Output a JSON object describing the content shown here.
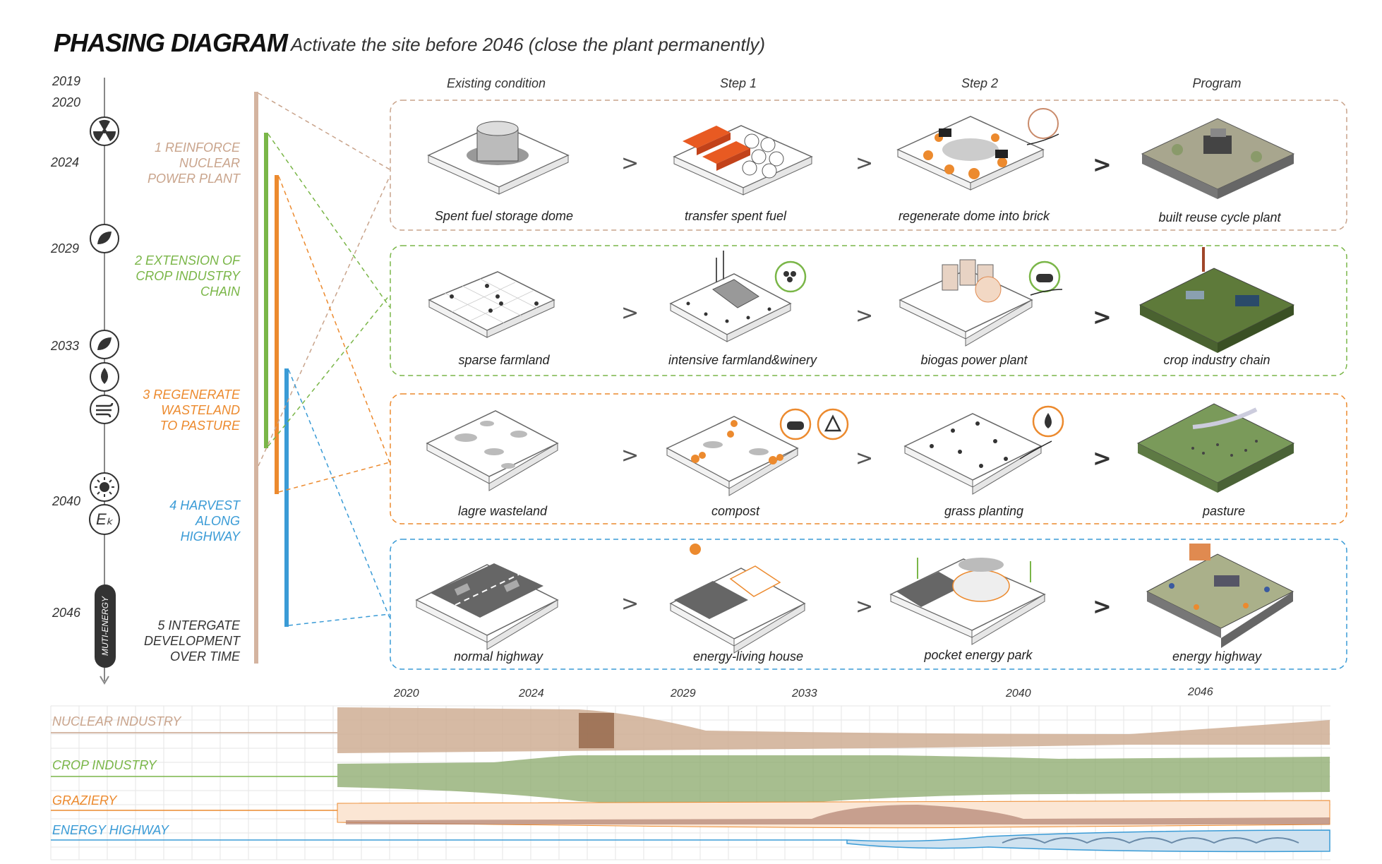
{
  "title": "PHASING DIAGRAM",
  "subtitle": "Activate the site before 2046 (close the plant permanently)",
  "colors": {
    "nuclear": "#c9a48c",
    "crop": "#7ab648",
    "pasture": "#ec8a2e",
    "highway": "#3a9bd6",
    "vertical_phase1": "#c9a48c"
  },
  "timeline": {
    "years": [
      {
        "label": "2019",
        "icon": ""
      },
      {
        "label": "2020",
        "icon": ""
      },
      {
        "label": "2024",
        "icon": "nuclear-icon"
      },
      {
        "label": "2029",
        "icon": "leaf-icon"
      },
      {
        "label": "2033",
        "icon": "leaf-icon"
      },
      {
        "label": "",
        "icon": "water-drop-icon"
      },
      {
        "label": "",
        "icon": "wind-icon"
      },
      {
        "label": "2040",
        "icon": "sun-icon"
      },
      {
        "label": "",
        "icon": "energy-ek-icon"
      },
      {
        "label": "2046",
        "icon": ""
      }
    ],
    "pill_label": "MUTI-ENERGY",
    "ek_text": "Eₖ"
  },
  "phases": [
    {
      "lines": [
        "1 REINFORCE",
        "NUCLEAR",
        "POWER PLANT"
      ],
      "color": "#c9a48c"
    },
    {
      "lines": [
        "2 EXTENSION OF",
        "CROP INDUSTRY",
        "CHAIN"
      ],
      "color": "#7ab648"
    },
    {
      "lines": [
        "3 REGENERATE",
        "WASTELAND",
        "TO PASTURE"
      ],
      "color": "#ec8a2e"
    },
    {
      "lines": [
        "4 HARVEST",
        "ALONG",
        "HIGHWAY"
      ],
      "color": "#3a9bd6"
    },
    {
      "lines": [
        "5 INTERGATE",
        "DEVELOPMENT",
        "OVER TIME"
      ],
      "color": "#333333"
    }
  ],
  "columns": [
    "Existing condition",
    "Step 1",
    "Step 2",
    "Program"
  ],
  "rows": [
    {
      "captions": [
        "Spent fuel storage dome",
        "transfer spent fuel",
        "regenerate dome into brick",
        "built reuse cycle plant"
      ],
      "color": "#c9a48c"
    },
    {
      "captions": [
        "sparse farmland",
        "intensive farmland&winery",
        "biogas power plant",
        "crop industry chain"
      ],
      "color": "#7ab648"
    },
    {
      "captions": [
        "lagre wasteland",
        "compost",
        "grass planting",
        "pasture"
      ],
      "color": "#ec8a2e"
    },
    {
      "captions": [
        "normal highway",
        "energy-living house",
        "pocket energy park",
        "energy highway"
      ],
      "color": "#3a9bd6"
    }
  ],
  "arrows": {
    "thin": ">",
    "bold": ">"
  },
  "bottom_timeline": {
    "years": [
      "2020",
      "2024",
      "2029",
      "2033",
      "2040",
      "2046"
    ],
    "bands": [
      {
        "label": "NUCLEAR INDUSTRY",
        "color": "#c9a48c"
      },
      {
        "label": "CROP INDUSTRY",
        "color": "#7ab648"
      },
      {
        "label": "GRAZIERY",
        "color": "#ec8a2e"
      },
      {
        "label": "ENERGY HIGHWAY",
        "color": "#3a9bd6"
      }
    ]
  }
}
